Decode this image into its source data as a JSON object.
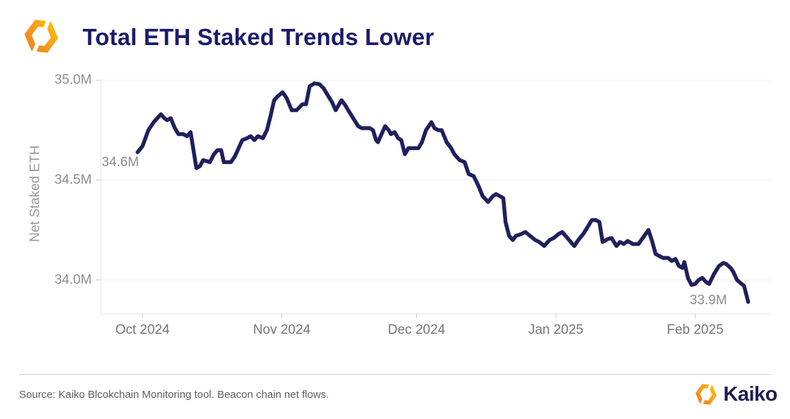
{
  "header": {
    "title": "Total ETH Staked Trends Lower",
    "logo_icon": "kaiko-hexagon-icon"
  },
  "chart_data": {
    "type": "line",
    "title": "Total ETH Staked Trends Lower",
    "xlabel": "",
    "ylabel": "Net Staked ETH",
    "x_unit": "days since Oct 1 2024",
    "y_unit": "millions of ETH",
    "ylim": [
      33.85,
      35.05
    ],
    "grid": true,
    "legend": "none",
    "line_color": "#20205e",
    "y_ticks": [
      {
        "label": "35.0M",
        "value": 35.0
      },
      {
        "label": "34.5M",
        "value": 34.5
      },
      {
        "label": "34.0M",
        "value": 34.0
      }
    ],
    "x_ticks": [
      {
        "label": "Oct 2024",
        "day": 0
      },
      {
        "label": "Nov 2024",
        "day": 31
      },
      {
        "label": "Dec 2024",
        "day": 61
      },
      {
        "label": "Jan 2025",
        "day": 92
      },
      {
        "label": "Feb 2025",
        "day": 123
      }
    ],
    "series": [
      {
        "name": "Net Staked ETH",
        "points": [
          [
            -1.1,
            34.64
          ],
          [
            0,
            34.67
          ],
          [
            1.3,
            34.75
          ],
          [
            2.5,
            34.79
          ],
          [
            4.1,
            34.83
          ],
          [
            4.9,
            34.81
          ],
          [
            5.5,
            34.8
          ],
          [
            6.3,
            34.81
          ],
          [
            7.2,
            34.76
          ],
          [
            8.0,
            34.73
          ],
          [
            9.1,
            34.73
          ],
          [
            9.9,
            34.72
          ],
          [
            10.7,
            34.74
          ],
          [
            12.0,
            34.56
          ],
          [
            12.8,
            34.57
          ],
          [
            13.5,
            34.6
          ],
          [
            15.0,
            34.59
          ],
          [
            15.9,
            34.63
          ],
          [
            16.7,
            34.65
          ],
          [
            17.5,
            34.65
          ],
          [
            18.1,
            34.59
          ],
          [
            19.7,
            34.59
          ],
          [
            20.6,
            34.62
          ],
          [
            22.2,
            34.7
          ],
          [
            23.3,
            34.71
          ],
          [
            24.1,
            34.72
          ],
          [
            24.9,
            34.7
          ],
          [
            25.7,
            34.72
          ],
          [
            26.8,
            34.71
          ],
          [
            27.7,
            34.75
          ],
          [
            28.5,
            34.82
          ],
          [
            29.3,
            34.9
          ],
          [
            30.1,
            34.92
          ],
          [
            31.2,
            34.94
          ],
          [
            32.1,
            34.91
          ],
          [
            33.2,
            34.85
          ],
          [
            34.3,
            34.85
          ],
          [
            35.6,
            34.88
          ],
          [
            36.4,
            34.88
          ],
          [
            37.2,
            34.97
          ],
          [
            38.3,
            34.985
          ],
          [
            39.4,
            34.98
          ],
          [
            40.3,
            34.96
          ],
          [
            41.1,
            34.93
          ],
          [
            42.2,
            34.89
          ],
          [
            43.0,
            34.85
          ],
          [
            43.5,
            34.87
          ],
          [
            44.3,
            34.9
          ],
          [
            45.0,
            34.88
          ],
          [
            45.8,
            34.85
          ],
          [
            46.9,
            34.81
          ],
          [
            48.0,
            34.77
          ],
          [
            48.8,
            34.76
          ],
          [
            49.8,
            34.76
          ],
          [
            50.6,
            34.76
          ],
          [
            51.3,
            34.75
          ],
          [
            52.0,
            34.7
          ],
          [
            52.4,
            34.69
          ],
          [
            54.0,
            34.77
          ],
          [
            54.8,
            34.75
          ],
          [
            55.3,
            34.73
          ],
          [
            56.1,
            34.74
          ],
          [
            56.9,
            34.71
          ],
          [
            57.6,
            34.7
          ],
          [
            58.4,
            34.63
          ],
          [
            59.2,
            34.66
          ],
          [
            60.3,
            34.66
          ],
          [
            61.4,
            34.66
          ],
          [
            62.2,
            34.69
          ],
          [
            63.1,
            34.75
          ],
          [
            64.3,
            34.79
          ],
          [
            65.0,
            34.76
          ],
          [
            65.8,
            34.75
          ],
          [
            66.6,
            34.75
          ],
          [
            67.7,
            34.69
          ],
          [
            68.7,
            34.66
          ],
          [
            69.4,
            34.63
          ],
          [
            70.6,
            34.6
          ],
          [
            71.7,
            34.59
          ],
          [
            72.6,
            34.53
          ],
          [
            73.7,
            34.52
          ],
          [
            74.8,
            34.47
          ],
          [
            75.7,
            34.42
          ],
          [
            76.9,
            34.39
          ],
          [
            78.0,
            34.42
          ],
          [
            78.7,
            34.43
          ],
          [
            79.5,
            34.42
          ],
          [
            80.3,
            34.41
          ],
          [
            80.8,
            34.29
          ],
          [
            81.6,
            34.22
          ],
          [
            82.4,
            34.2
          ],
          [
            83.1,
            34.22
          ],
          [
            84.3,
            34.23
          ],
          [
            85.2,
            34.24
          ],
          [
            86.3,
            34.22
          ],
          [
            87.4,
            34.2
          ],
          [
            88.3,
            34.19
          ],
          [
            89.4,
            34.17
          ],
          [
            90.6,
            34.2
          ],
          [
            91.5,
            34.21
          ],
          [
            92.6,
            34.23
          ],
          [
            93.4,
            34.24
          ],
          [
            94.2,
            34.22
          ],
          [
            95.3,
            34.19
          ],
          [
            96.1,
            34.17
          ],
          [
            97.0,
            34.2
          ],
          [
            98.1,
            34.23
          ],
          [
            99.2,
            34.27
          ],
          [
            100.0,
            34.3
          ],
          [
            100.9,
            34.3
          ],
          [
            101.7,
            34.29
          ],
          [
            102.4,
            34.19
          ],
          [
            103.6,
            34.205
          ],
          [
            104.4,
            34.21
          ],
          [
            105.5,
            34.17
          ],
          [
            106.3,
            34.19
          ],
          [
            107.1,
            34.18
          ],
          [
            108.0,
            34.195
          ],
          [
            109.1,
            34.18
          ],
          [
            110.4,
            34.18
          ],
          [
            111.5,
            34.215
          ],
          [
            112.6,
            34.25
          ],
          [
            113.4,
            34.195
          ],
          [
            114.2,
            34.13
          ],
          [
            115.0,
            34.12
          ],
          [
            115.9,
            34.11
          ],
          [
            117.0,
            34.11
          ],
          [
            117.8,
            34.095
          ],
          [
            118.6,
            34.105
          ],
          [
            119.4,
            34.07
          ],
          [
            120.2,
            34.06
          ],
          [
            120.6,
            34.09
          ],
          [
            121.4,
            34.01
          ],
          [
            122.2,
            33.975
          ],
          [
            123.0,
            33.98
          ],
          [
            123.8,
            34.0
          ],
          [
            124.6,
            34.01
          ],
          [
            125.4,
            33.99
          ],
          [
            126.1,
            33.98
          ],
          [
            127.2,
            34.03
          ],
          [
            128.3,
            34.07
          ],
          [
            129.3,
            34.085
          ],
          [
            129.9,
            34.08
          ],
          [
            130.9,
            34.06
          ],
          [
            131.5,
            34.04
          ],
          [
            132.3,
            34.0
          ],
          [
            133.1,
            33.985
          ],
          [
            133.9,
            33.97
          ],
          [
            134.8,
            33.89
          ]
        ]
      }
    ],
    "annotations": [
      {
        "label": "34.6M",
        "day": -1.1,
        "value": 34.6
      },
      {
        "label": "33.9M",
        "day": 134.8,
        "value": 33.89
      }
    ]
  },
  "footer": {
    "source": "Source: Kaiko Blcokchain Monitoring tool. Beacon chain net flows.",
    "brand": "Kaiko"
  },
  "colors": {
    "line": "#20205e",
    "title_navy": "#1b1b6b",
    "brand_navy": "#1e1e52",
    "grid": "#ededed",
    "axis": "#e2e2e2",
    "tick": "#c9c9c9",
    "y_label_gray": "#8d8d8d",
    "month_gray": "#757575",
    "source_gray": "#5d5d5d",
    "logo_orange_dark": "#ef7d17",
    "logo_orange_mid": "#f89c1c",
    "logo_orange_light": "#fdb813"
  }
}
